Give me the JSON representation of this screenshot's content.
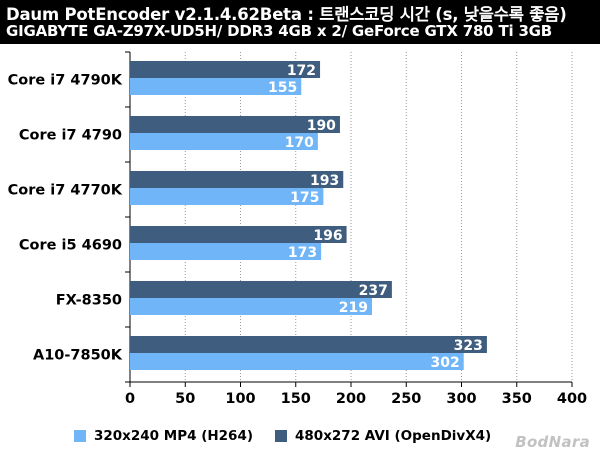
{
  "title": {
    "line1": "Daum PotEncoder v2.1.4.62Beta : 트랜스코딩 시간 (s, 낮을수록 좋음)",
    "line2": "GIGABYTE GA-Z97X-UD5H/ DDR3 4GB x 2/ GeForce GTX 780 Ti 3GB"
  },
  "colors": {
    "series_dark": "#3F5D7E",
    "series_light": "#6FB5F7",
    "grid": "#9A9A9A",
    "title_bg": "#000000"
  },
  "watermark": "BodNara",
  "chart_data": {
    "type": "bar",
    "orientation": "horizontal",
    "categories": [
      "Core i7 4790K",
      "Core i7 4790",
      "Core i7 4770K",
      "Core i5 4690",
      "FX-8350",
      "A10-7850K"
    ],
    "series": [
      {
        "name": "480x272 AVI (OpenDivX4)",
        "values": [
          172,
          190,
          193,
          196,
          237,
          323
        ]
      },
      {
        "name": "320x240 MP4 (H264)",
        "values": [
          155,
          170,
          175,
          173,
          219,
          302
        ]
      }
    ],
    "xlim": [
      0,
      400
    ],
    "xticks": [
      "0",
      "50",
      "100",
      "150",
      "200",
      "250",
      "300",
      "350",
      "400"
    ],
    "grid": true,
    "legend_position": "bottom",
    "legend_order": [
      "320x240 MP4 (H264)",
      "480x272 AVI (OpenDivX4)"
    ]
  }
}
